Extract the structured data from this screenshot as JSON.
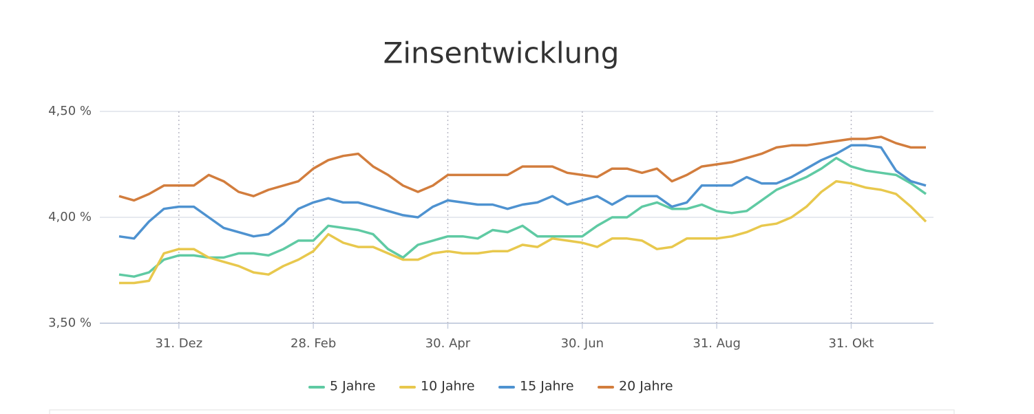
{
  "chart_data": {
    "type": "line",
    "title": "Zinsentwicklung",
    "categories": [
      null,
      null,
      null,
      null,
      "31. Dez",
      null,
      null,
      null,
      null,
      null,
      null,
      null,
      null,
      "28. Feb",
      null,
      null,
      null,
      null,
      null,
      null,
      null,
      null,
      "30. Apr",
      null,
      null,
      null,
      null,
      null,
      null,
      null,
      null,
      "30. Jun",
      null,
      null,
      null,
      null,
      null,
      null,
      null,
      null,
      "31. Aug",
      null,
      null,
      null,
      null,
      null,
      null,
      null,
      null,
      "31. Okt",
      null,
      null,
      null,
      null,
      null
    ],
    "series": [
      {
        "name": "5 Jahre",
        "color": "#5fcaa3",
        "values": [
          3.73,
          3.72,
          3.74,
          3.8,
          3.82,
          3.82,
          3.81,
          3.81,
          3.83,
          3.83,
          3.82,
          3.85,
          3.89,
          3.89,
          3.96,
          3.95,
          3.94,
          3.92,
          3.85,
          3.81,
          3.87,
          3.89,
          3.91,
          3.91,
          3.9,
          3.94,
          3.93,
          3.96,
          3.91,
          3.91,
          3.91,
          3.91,
          3.96,
          4.0,
          4.0,
          4.05,
          4.07,
          4.04,
          4.04,
          4.06,
          4.03,
          4.02,
          4.03,
          4.08,
          4.13,
          4.16,
          4.19,
          4.23,
          4.28,
          4.24,
          4.22,
          4.21,
          4.2,
          4.16,
          4.11
        ]
      },
      {
        "name": "10 Jahre",
        "color": "#e8c84d",
        "values": [
          3.69,
          3.69,
          3.7,
          3.83,
          3.85,
          3.85,
          3.81,
          3.79,
          3.77,
          3.74,
          3.73,
          3.77,
          3.8,
          3.84,
          3.92,
          3.88,
          3.86,
          3.86,
          3.83,
          3.8,
          3.8,
          3.83,
          3.84,
          3.83,
          3.83,
          3.84,
          3.84,
          3.87,
          3.86,
          3.9,
          3.89,
          3.88,
          3.86,
          3.9,
          3.9,
          3.89,
          3.85,
          3.86,
          3.9,
          3.9,
          3.9,
          3.91,
          3.93,
          3.96,
          3.97,
          4.0,
          4.05,
          4.12,
          4.17,
          4.16,
          4.14,
          4.13,
          4.11,
          4.05,
          3.98
        ]
      },
      {
        "name": "15 Jahre",
        "color": "#4e92d0",
        "values": [
          3.91,
          3.9,
          3.98,
          4.04,
          4.05,
          4.05,
          4.0,
          3.95,
          3.93,
          3.91,
          3.92,
          3.97,
          4.04,
          4.07,
          4.09,
          4.07,
          4.07,
          4.05,
          4.03,
          4.01,
          4.0,
          4.05,
          4.08,
          4.07,
          4.06,
          4.06,
          4.04,
          4.06,
          4.07,
          4.1,
          4.06,
          4.08,
          4.1,
          4.06,
          4.1,
          4.1,
          4.1,
          4.05,
          4.07,
          4.15,
          4.15,
          4.15,
          4.19,
          4.16,
          4.16,
          4.19,
          4.23,
          4.27,
          4.3,
          4.34,
          4.34,
          4.33,
          4.22,
          4.17,
          4.15
        ]
      },
      {
        "name": "20 Jahre",
        "color": "#d27d3d",
        "values": [
          4.1,
          4.08,
          4.11,
          4.15,
          4.15,
          4.15,
          4.2,
          4.17,
          4.12,
          4.1,
          4.13,
          4.15,
          4.17,
          4.23,
          4.27,
          4.29,
          4.3,
          4.24,
          4.2,
          4.15,
          4.12,
          4.15,
          4.2,
          4.2,
          4.2,
          4.2,
          4.2,
          4.24,
          4.24,
          4.24,
          4.21,
          4.2,
          4.19,
          4.23,
          4.23,
          4.21,
          4.23,
          4.17,
          4.2,
          4.24,
          4.25,
          4.26,
          4.28,
          4.3,
          4.33,
          4.34,
          4.34,
          4.35,
          4.36,
          4.37,
          4.37,
          4.38,
          4.35,
          4.33,
          4.33
        ]
      }
    ],
    "ylim": [
      3.5,
      4.5
    ],
    "yticks": [
      {
        "value": 3.5,
        "label": "3,50 %"
      },
      {
        "value": 4.0,
        "label": "4,00 %"
      },
      {
        "value": 4.5,
        "label": "4,50 %"
      }
    ],
    "grid": true
  }
}
